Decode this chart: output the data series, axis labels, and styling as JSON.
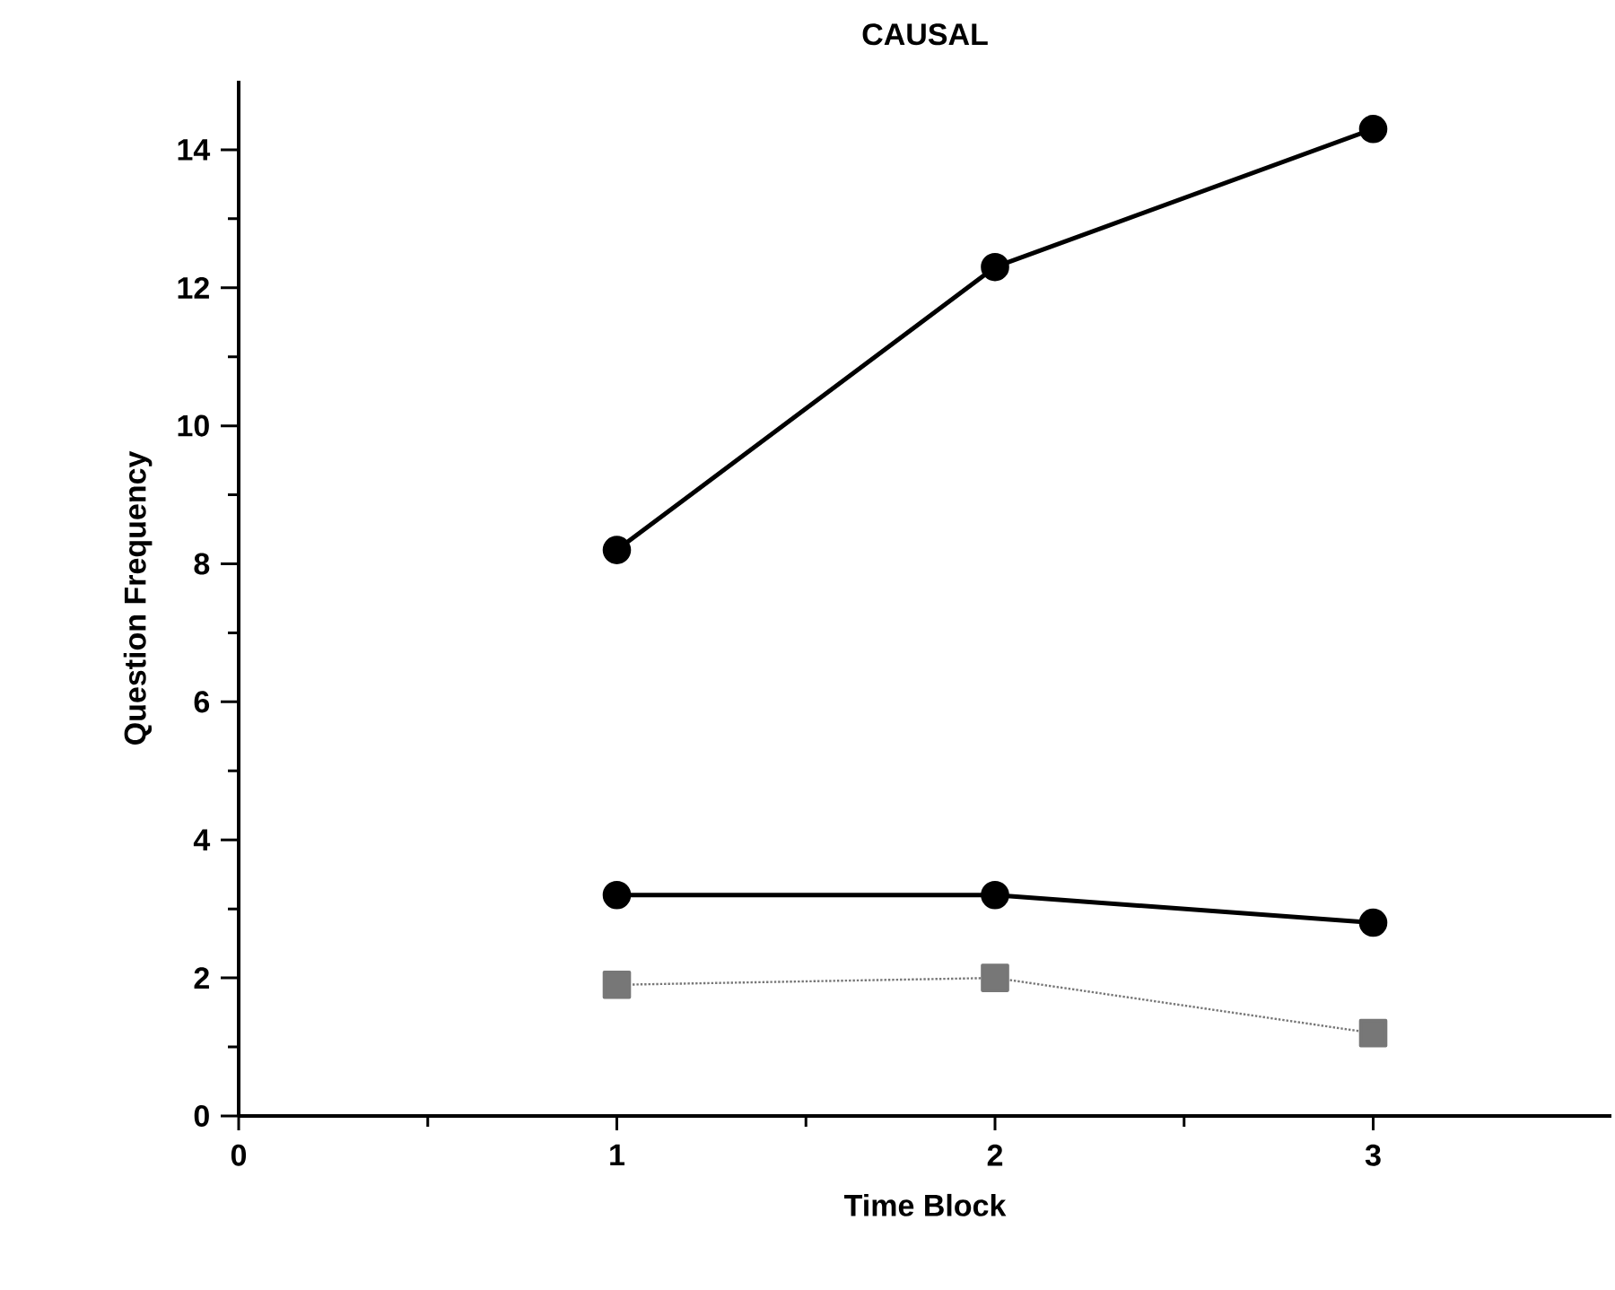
{
  "chart_data": {
    "type": "line",
    "title": "CAUSAL",
    "xlabel": "Time Block",
    "ylabel": "Question Frequency",
    "x": [
      1,
      2,
      3
    ],
    "series": [
      {
        "color": "#000000",
        "values": [
          8.2,
          12.3,
          14.3
        ],
        "marker": "circle",
        "line_style": "solid"
      },
      {
        "color": "#000000",
        "values": [
          3.2,
          3.2,
          2.8
        ],
        "marker": "circle",
        "line_style": "solid"
      },
      {
        "color": "#777777",
        "values": [
          1.9,
          2.0,
          1.2
        ],
        "marker": "square",
        "line_style": "dotted"
      }
    ],
    "xlim": [
      0,
      3.63
    ],
    "ylim": [
      0,
      15
    ],
    "xticks": [
      0,
      1,
      2,
      3
    ],
    "yticks": [
      0,
      2,
      4,
      6,
      8,
      10,
      12,
      14
    ]
  }
}
